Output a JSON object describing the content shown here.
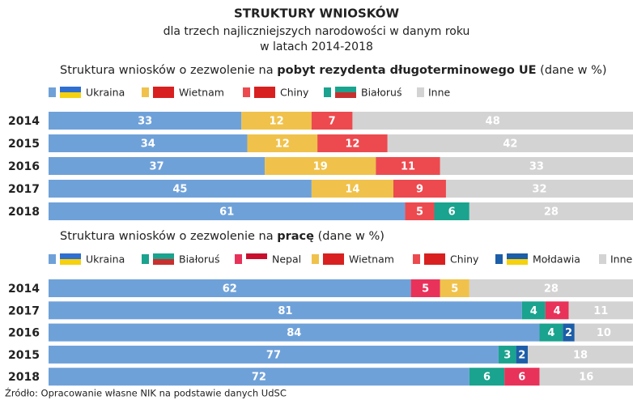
{
  "title": "STRUKTURY WNIOSKÓW",
  "subtitle": [
    "dla trzech najliczniejszych narodowości w danym roku",
    "w latach 2014-2018"
  ],
  "source": "Źródło: Opracowanie własne NIK na podstawie danych UdSC",
  "chart_data": [
    {
      "type": "stacked_barh",
      "title_parts": [
        "Struktura wniosków o zezwolenie na ",
        "pobyt rezydenta długoterminowego UE",
        " (dane w %)"
      ],
      "categories": [
        "2014",
        "2015",
        "2016",
        "2017",
        "2018"
      ],
      "xlim": [
        0,
        100
      ],
      "series": [
        {
          "name": "Ukraina",
          "color": "#6fa1d9",
          "values": [
            33,
            34,
            37,
            45,
            61
          ]
        },
        {
          "name": "Wietnam",
          "color": "#f0c24b",
          "values": [
            12,
            12,
            19,
            14,
            null
          ]
        },
        {
          "name": "Chiny",
          "color": "#ec4a4f",
          "values": [
            7,
            12,
            11,
            9,
            5
          ]
        },
        {
          "name": "Białoruś",
          "color": "#1aa38e",
          "values": [
            null,
            null,
            null,
            null,
            6
          ]
        },
        {
          "name": "Inne",
          "color": "#d3d3d3",
          "values": [
            48,
            42,
            33,
            32,
            28
          ]
        }
      ]
    },
    {
      "type": "stacked_barh",
      "title_parts": [
        "Struktura wniosków o zezwolenie na ",
        "pracę",
        " (dane w %)"
      ],
      "categories": [
        "2014",
        "2017",
        "2016",
        "2015",
        "2018"
      ],
      "xlim": [
        0,
        100
      ],
      "series": [
        {
          "name": "Ukraina",
          "color": "#6fa1d9",
          "values": [
            62,
            81,
            84,
            77,
            72
          ]
        },
        {
          "name": "Białoruś",
          "color": "#1aa38e",
          "values": [
            null,
            4,
            4,
            3,
            6
          ]
        },
        {
          "name": "Nepal",
          "color": "#e8325a",
          "values": [
            5,
            4,
            null,
            null,
            6
          ]
        },
        {
          "name": "Wietnam",
          "color": "#f0c24b",
          "values": [
            5,
            null,
            null,
            null,
            null
          ]
        },
        {
          "name": "Chiny",
          "color": "#ec4a4f",
          "values": [
            null,
            null,
            null,
            null,
            null
          ]
        },
        {
          "name": "Mołdawia",
          "color": "#1c5ea8",
          "values": [
            null,
            null,
            2,
            2,
            null
          ]
        },
        {
          "name": "Inne",
          "color": "#d3d3d3",
          "values": [
            28,
            11,
            10,
            18,
            16
          ]
        }
      ]
    }
  ]
}
